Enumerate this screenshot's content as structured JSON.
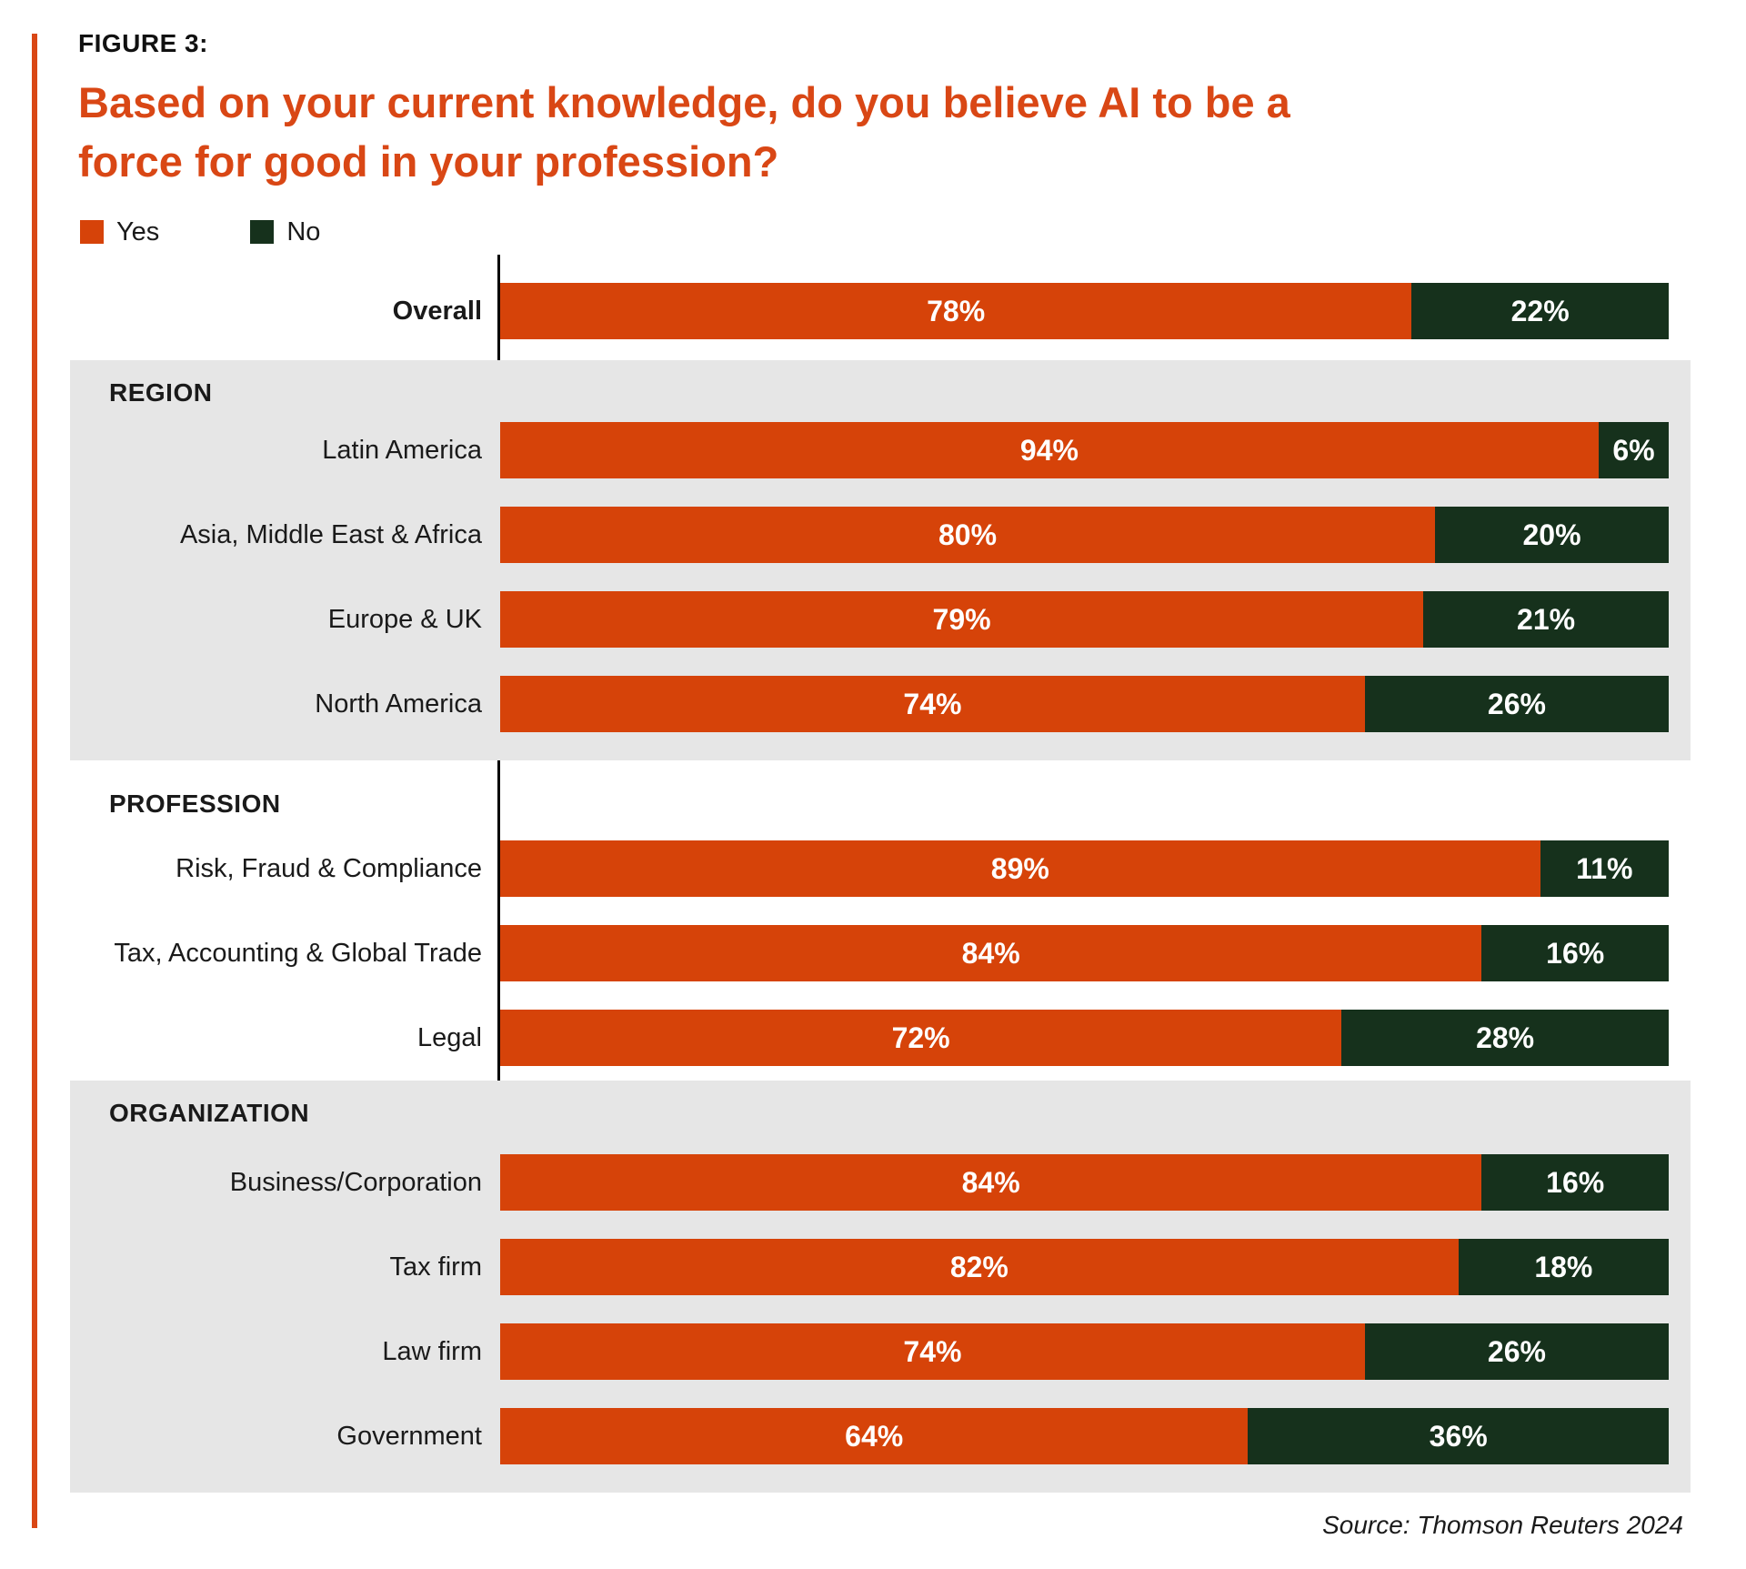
{
  "header": {
    "figure_label": "FIGURE 3:",
    "title": "Based on your current knowledge, do you believe AI to be a force for good in your profession?"
  },
  "legend": {
    "items": [
      {
        "label": "Yes",
        "color": "#d64309"
      },
      {
        "label": "No",
        "color": "#16311c"
      }
    ]
  },
  "source": "Source: Thomson Reuters 2024",
  "colors": {
    "yes": "#d64309",
    "no": "#16311c",
    "section_bg": "#e6e6e6",
    "title": "#d94715",
    "accent_line": "#d94715",
    "axis": "#000000",
    "value_text": "#ffffff"
  },
  "chart_data": {
    "type": "bar",
    "orientation": "horizontal",
    "stacked": true,
    "unit": "%",
    "x_range": [
      0,
      100
    ],
    "legend_position": "top-left",
    "series_names": [
      "Yes",
      "No"
    ],
    "groups": [
      {
        "header": "",
        "shaded": false,
        "key": "overall",
        "rows": [
          {
            "label": "Overall",
            "Yes": 78,
            "No": 22,
            "emphasis": true
          }
        ]
      },
      {
        "header": "REGION",
        "shaded": true,
        "key": "region",
        "rows": [
          {
            "label": "Latin America",
            "Yes": 94,
            "No": 6
          },
          {
            "label": "Asia, Middle East & Africa",
            "Yes": 80,
            "No": 20
          },
          {
            "label": "Europe & UK",
            "Yes": 79,
            "No": 21
          },
          {
            "label": "North America",
            "Yes": 74,
            "No": 26
          }
        ]
      },
      {
        "header": "PROFESSION",
        "shaded": false,
        "key": "profession",
        "rows": [
          {
            "label": "Risk, Fraud & Compliance",
            "Yes": 89,
            "No": 11
          },
          {
            "label": "Tax, Accounting & Global Trade",
            "Yes": 84,
            "No": 16
          },
          {
            "label": "Legal",
            "Yes": 72,
            "No": 28
          }
        ]
      },
      {
        "header": "ORGANIZATION",
        "shaded": true,
        "key": "organization",
        "rows": [
          {
            "label": "Business/Corporation",
            "Yes": 84,
            "No": 16
          },
          {
            "label": "Tax firm",
            "Yes": 82,
            "No": 18
          },
          {
            "label": "Law firm",
            "Yes": 74,
            "No": 26
          },
          {
            "label": "Government",
            "Yes": 64,
            "No": 36
          }
        ]
      }
    ]
  }
}
